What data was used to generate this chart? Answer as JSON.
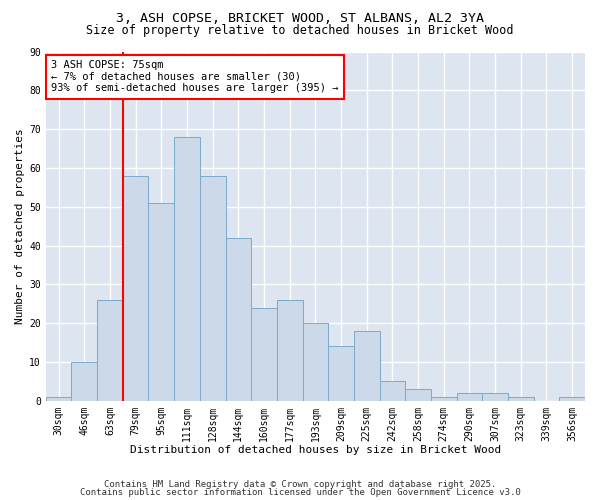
{
  "title_line1": "3, ASH COPSE, BRICKET WOOD, ST ALBANS, AL2 3YA",
  "title_line2": "Size of property relative to detached houses in Bricket Wood",
  "xlabel": "Distribution of detached houses by size in Bricket Wood",
  "ylabel": "Number of detached properties",
  "categories": [
    "30sqm",
    "46sqm",
    "63sqm",
    "79sqm",
    "95sqm",
    "111sqm",
    "128sqm",
    "144sqm",
    "160sqm",
    "177sqm",
    "193sqm",
    "209sqm",
    "225sqm",
    "242sqm",
    "258sqm",
    "274sqm",
    "290sqm",
    "307sqm",
    "323sqm",
    "339sqm",
    "356sqm"
  ],
  "values": [
    1,
    10,
    26,
    58,
    51,
    68,
    58,
    42,
    24,
    26,
    20,
    14,
    18,
    5,
    3,
    1,
    2,
    2,
    1,
    0,
    1
  ],
  "bar_color": "#ccd9e8",
  "bar_edge_color": "#7aaacc",
  "bar_edge_width": 0.7,
  "red_line_x": 2.5,
  "annotation_text": "3 ASH COPSE: 75sqm\n← 7% of detached houses are smaller (30)\n93% of semi-detached houses are larger (395) →",
  "annotation_box_color": "white",
  "annotation_box_edge": "red",
  "ylim": [
    0,
    90
  ],
  "yticks": [
    0,
    10,
    20,
    30,
    40,
    50,
    60,
    70,
    80,
    90
  ],
  "background_color": "#dde6f0",
  "grid_color": "white",
  "footer_line1": "Contains HM Land Registry data © Crown copyright and database right 2025.",
  "footer_line2": "Contains public sector information licensed under the Open Government Licence v3.0",
  "title_fontsize": 9.5,
  "subtitle_fontsize": 8.5,
  "xlabel_fontsize": 8,
  "ylabel_fontsize": 8,
  "tick_fontsize": 7,
  "annotation_fontsize": 7.5,
  "footer_fontsize": 6.5
}
